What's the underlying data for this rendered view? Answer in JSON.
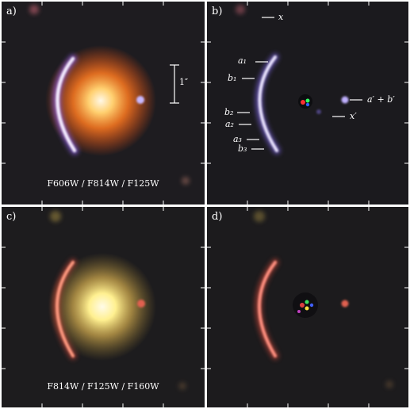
{
  "panels": [
    {
      "letter": "a)",
      "filters": "F606W / F814W / F125W",
      "palette": {
        "lens_core": "#fff7e0",
        "lens_glow": "#ff8a28",
        "arc": "#f0e6ff",
        "arc_edge": "#a46cff"
      }
    },
    {
      "letter": "b)",
      "filters": "",
      "palette": {
        "arc": "#e8e2ff",
        "arc_edge": "#8a70ff"
      }
    },
    {
      "letter": "c)",
      "filters": "F814W / F125W / F160W",
      "palette": {
        "lens_core": "#fffbe8",
        "lens_glow": "#f4c860",
        "arc": "#ff9a80",
        "arc_edge": "#e2503a"
      }
    },
    {
      "letter": "d)",
      "filters": "",
      "palette": {
        "arc": "#ff9080",
        "arc_edge": "#d84a3a"
      }
    }
  ],
  "scale_bar": {
    "label": "1″"
  },
  "annotations": {
    "x": "x",
    "a1": "a₁",
    "b1": "b₁",
    "b2": "b₂",
    "a2": "a₂",
    "a3": "a₃",
    "b3": "b₃",
    "apb": "a′ + b′",
    "xp": "x′"
  },
  "colors": {
    "background": "#1c1b1e",
    "label": "#ffffff",
    "frame": "#ffffff"
  }
}
